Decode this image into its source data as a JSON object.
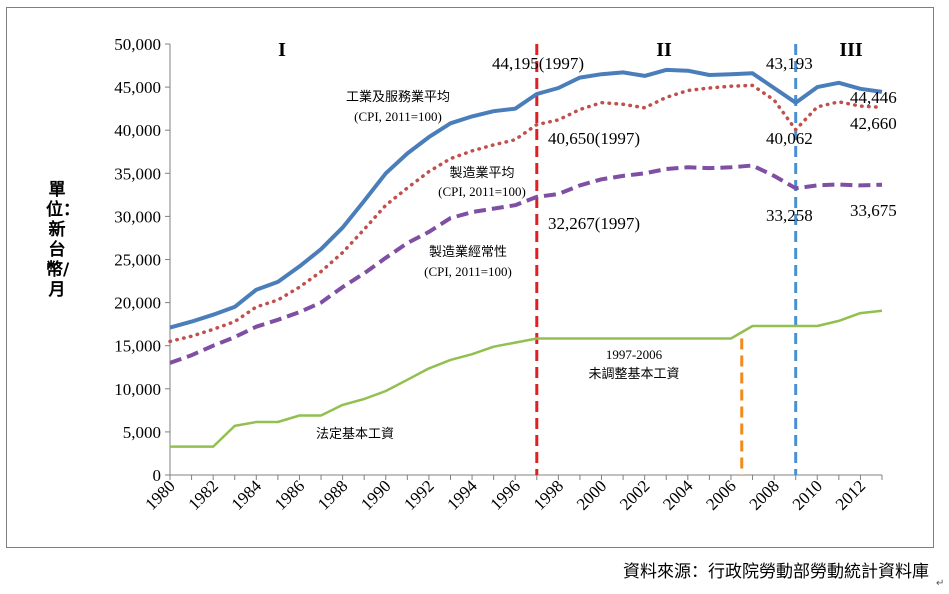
{
  "chart_data": {
    "type": "line",
    "ylabel": "單位：新台幣/月",
    "ylim": [
      0,
      50000
    ],
    "yticks": [
      "0",
      "5,000",
      "10,000",
      "15,000",
      "20,000",
      "25,000",
      "30,000",
      "35,000",
      "40,000",
      "45,000",
      "50,000"
    ],
    "xlim": [
      1980,
      2013
    ],
    "xticks": [
      "1980",
      "1982",
      "1984",
      "1986",
      "1988",
      "1990",
      "1992",
      "1994",
      "1996",
      "1998",
      "2000",
      "2002",
      "2004",
      "2006",
      "2008",
      "2010",
      "2012"
    ],
    "x": [
      1980,
      1981,
      1982,
      1983,
      1984,
      1985,
      1986,
      1987,
      1988,
      1989,
      1990,
      1991,
      1992,
      1993,
      1994,
      1995,
      1996,
      1997,
      1998,
      1999,
      2000,
      2001,
      2002,
      2003,
      2004,
      2005,
      2006,
      2007,
      2008,
      2009,
      2010,
      2011,
      2012,
      2013
    ],
    "grid": false,
    "series": [
      {
        "name_line1": "工業及服務業平均",
        "name_line2": "(CPI, 2011=100)",
        "color": "#4a7ebb",
        "style": "solid",
        "values": [
          17100,
          17800,
          18600,
          19500,
          21500,
          22400,
          24200,
          26200,
          28700,
          31800,
          35000,
          37300,
          39200,
          40800,
          41600,
          42200,
          42500,
          44195,
          44900,
          46100,
          46500,
          46700,
          46300,
          47000,
          46900,
          46400,
          46500,
          46600,
          44900,
          43193,
          45000,
          45500,
          44800,
          44446
        ]
      },
      {
        "name_line1": "製造業平均",
        "name_line2": "(CPI, 2011=100)",
        "color": "#c0504d",
        "style": "dotted",
        "values": [
          15500,
          16100,
          16900,
          17800,
          19500,
          20300,
          21800,
          23600,
          25800,
          28500,
          31300,
          33300,
          35200,
          36700,
          37600,
          38300,
          38900,
          40650,
          41200,
          42400,
          43200,
          43000,
          42600,
          43800,
          44600,
          44900,
          45100,
          45200,
          43500,
          40062,
          42700,
          43300,
          42800,
          42660
        ]
      },
      {
        "name_line1": "製造業經常性",
        "name_line2": "(CPI, 2011=100)",
        "color": "#7f4fa3",
        "style": "dashed",
        "values": [
          13000,
          13900,
          15000,
          16000,
          17200,
          18000,
          18900,
          20000,
          21800,
          23400,
          25200,
          26900,
          28200,
          29800,
          30500,
          30900,
          31300,
          32267,
          32600,
          33600,
          34300,
          34700,
          35000,
          35500,
          35700,
          35600,
          35700,
          35900,
          34700,
          33258,
          33600,
          33700,
          33600,
          33675
        ]
      },
      {
        "name_line1": "法定基本工資",
        "color": "#92c050",
        "style": "solid",
        "values": [
          3300,
          3300,
          3300,
          5700,
          6150,
          6150,
          6900,
          6900,
          8130,
          8820,
          9750,
          11040,
          12365,
          13350,
          14010,
          14880,
          15360,
          15840,
          15840,
          15840,
          15840,
          15840,
          15840,
          15840,
          15840,
          15840,
          15840,
          17280,
          17280,
          17280,
          17280,
          17880,
          18780,
          19047
        ]
      }
    ],
    "vlines": [
      {
        "x": 1997,
        "color": "#e02020"
      },
      {
        "x": 2006.5,
        "color": "#f28a1e",
        "ymax": 15840
      },
      {
        "x": 2009,
        "color": "#4a90d0"
      }
    ],
    "periods": [
      "I",
      "II",
      "III"
    ],
    "annotations": {
      "a1997_ind": "44,195(1997)",
      "a1997_mfg": "40,650(1997)",
      "a1997_reg": "32,267(1997)",
      "a2009_ind": "43,193",
      "a2009_mfg": "40,062",
      "a2009_reg": "33,258",
      "a2013_ind": "44,446",
      "a2013_mfg": "42,660",
      "a2013_reg": "33,675",
      "freeze_line1": "1997-2006",
      "freeze_line2": "未調整基本工資"
    }
  },
  "source": "資料來源：行政院勞動部勞動統計資料庫",
  "corner_mark": "↵"
}
